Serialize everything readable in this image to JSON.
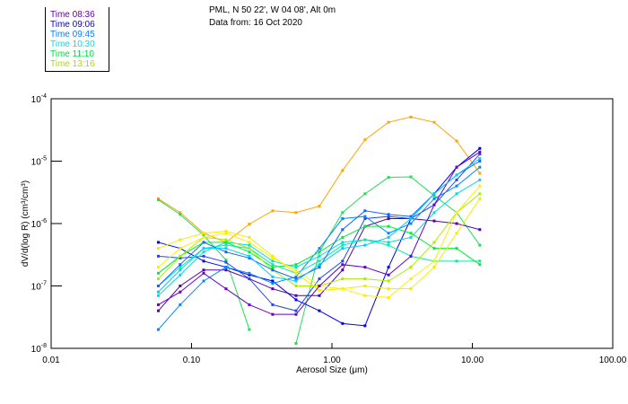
{
  "chart_data": {
    "type": "line",
    "title": [
      "PML, N 50 22', W 04 08', Alt 0m",
      "Data from: 16 Oct 2020"
    ],
    "xlabel": "Aerosol Size (μm)",
    "ylabel": "dV/d(log R) (cm³/cm³)",
    "xscale": "log",
    "yscale": "log",
    "xlim": [
      0.01,
      100
    ],
    "ylim": [
      1e-08,
      0.0001
    ],
    "xticks": [
      {
        "v": 0.01,
        "label": "0.01"
      },
      {
        "v": 0.1,
        "label": "0.10"
      },
      {
        "v": 1,
        "label": "1.00"
      },
      {
        "v": 10,
        "label": "10.00"
      },
      {
        "v": 100,
        "label": "100.00"
      }
    ],
    "yticks": [
      {
        "v": 0.0001,
        "exp": "-4"
      },
      {
        "v": 1e-05,
        "exp": "-5"
      },
      {
        "v": 1e-06,
        "exp": "-6"
      },
      {
        "v": 1e-07,
        "exp": "-7"
      },
      {
        "v": 1e-08,
        "exp": "-8"
      }
    ],
    "ytick_base": "10",
    "legend": {
      "placement": "top-left",
      "entries": [
        {
          "label": "Time 08:36",
          "color": "#6600aa"
        },
        {
          "label": "Time 09:06",
          "color": "#0000ee"
        },
        {
          "label": "Time 09:45",
          "color": "#0080ff"
        },
        {
          "label": "Time 10:30",
          "color": "#00e0e0"
        },
        {
          "label": "Time 11:10",
          "color": "#00dd44"
        },
        {
          "label": "Time 13:16",
          "color": "#aadd00"
        }
      ]
    },
    "x": [
      0.058,
      0.083,
      0.122,
      0.176,
      0.258,
      0.378,
      0.555,
      0.814,
      1.19,
      1.72,
      2.53,
      3.65,
      5.35,
      7.73,
      11.3
    ],
    "series": [
      {
        "color": "#ffa500",
        "values": [
          2.5e-06,
          1.5e-06,
          7e-07,
          5e-07,
          9.8e-07,
          1.6e-06,
          1.5e-06,
          1.9e-06,
          7.1e-06,
          2.2e-05,
          4.2e-05,
          5.1e-05,
          4.2e-05,
          2.1e-05,
          6.4e-06
        ]
      },
      {
        "color": "#22dd55",
        "values": [
          2.4e-06,
          1.4e-06,
          6.5e-07,
          2.6e-07,
          2e-08,
          null,
          null,
          null,
          null,
          null,
          null,
          null,
          null,
          null,
          null
        ]
      },
      {
        "color": "#22dd55",
        "values": [
          null,
          null,
          null,
          null,
          null,
          null,
          1.2e-08,
          3.5e-07,
          1.5e-06,
          3e-06,
          5.5e-06,
          5.6e-06,
          2.8e-06,
          1.5e-06,
          4.5e-07
        ]
      },
      {
        "color": "#5500aa",
        "values": [
          4e-08,
          1e-07,
          1.8e-07,
          1.8e-07,
          1.3e-07,
          9e-08,
          7e-08,
          7e-08,
          1.8e-07,
          9e-07,
          1.2e-06,
          1.2e-06,
          1.1e-06,
          1e-06,
          8e-07
        ]
      },
      {
        "color": "#0000ee",
        "values": [
          5e-07,
          4e-07,
          2.5e-07,
          2e-07,
          1.5e-07,
          1.2e-07,
          6e-08,
          4e-08,
          2.5e-08,
          2.3e-08,
          2e-07,
          1.2e-06,
          3e-06,
          8e-06,
          1.6e-05
        ]
      },
      {
        "color": "#2244ff",
        "values": [
          3e-07,
          2.8e-07,
          3e-07,
          2.4e-07,
          1.3e-07,
          5e-08,
          4e-08,
          1.3e-07,
          2.5e-07,
          1.2e-06,
          1.3e-06,
          1.2e-06,
          2e-06,
          5e-06,
          1.3e-05
        ]
      },
      {
        "color": "#0088ff",
        "values": [
          2e-08,
          5e-08,
          1.2e-07,
          2e-07,
          1.6e-07,
          1.1e-07,
          1.4e-07,
          4e-07,
          1.2e-06,
          1.3e-06,
          7e-07,
          1e-06,
          2.5e-06,
          4e-06,
          8e-06
        ]
      },
      {
        "color": "#00dddd",
        "values": [
          7e-08,
          1.5e-07,
          3.5e-07,
          5e-07,
          4.5e-07,
          2.5e-07,
          2e-07,
          3e-07,
          5e-07,
          5.5e-07,
          5e-07,
          6e-07,
          1.5e-06,
          3e-06,
          5e-06
        ]
      },
      {
        "color": "#00eeaa",
        "values": [
          1e-07,
          2e-07,
          4e-07,
          4.5e-07,
          4e-07,
          2.2e-07,
          1.6e-07,
          2.5e-07,
          4.5e-07,
          5.5e-07,
          4.5e-07,
          3e-07,
          2.5e-07,
          2.5e-07,
          2.5e-07
        ]
      },
      {
        "color": "#00ee33",
        "values": [
          1.6e-07,
          3e-07,
          5e-07,
          5e-07,
          3.5e-07,
          2e-07,
          2.2e-07,
          3.5e-07,
          6e-07,
          9e-07,
          9e-07,
          7e-07,
          4e-07,
          4e-07,
          2.2e-07
        ]
      },
      {
        "color": "#aaee00",
        "values": [
          1.3e-07,
          3e-07,
          6e-07,
          5.5e-07,
          4e-07,
          1.8e-07,
          1e-07,
          1e-07,
          1.3e-07,
          1.3e-07,
          1.2e-07,
          2e-07,
          5e-07,
          1.5e-06,
          3e-06
        ]
      },
      {
        "color": "#eeee00",
        "values": [
          4e-07,
          5.5e-07,
          7e-07,
          7.5e-07,
          6e-07,
          3e-07,
          1.6e-07,
          8.5e-08,
          9e-08,
          1e-07,
          9e-08,
          9e-08,
          2e-07,
          7e-07,
          2.5e-06
        ]
      },
      {
        "color": "#ffee00",
        "values": [
          2e-07,
          4e-07,
          6e-07,
          7e-07,
          5e-07,
          2.8e-07,
          1.8e-07,
          1e-07,
          9e-08,
          7e-08,
          6.5e-08,
          1.3e-07,
          2.5e-07,
          1.5e-06,
          4e-06
        ]
      },
      {
        "color": "#6600cc",
        "values": [
          5e-08,
          8e-08,
          1.6e-07,
          9e-08,
          5e-08,
          3.5e-08,
          3.5e-08,
          1e-07,
          2.2e-07,
          2e-07,
          1.5e-07,
          3e-07,
          2e-06,
          8e-06,
          1.4e-05
        ]
      },
      {
        "color": "#1166ff",
        "values": [
          1e-07,
          2.2e-07,
          5e-07,
          3.5e-07,
          2.8e-07,
          1.8e-07,
          1.3e-07,
          2e-07,
          8e-07,
          1.6e-06,
          1.4e-06,
          1.3e-06,
          3e-06,
          6e-06,
          1e-05
        ]
      },
      {
        "color": "#00ccff",
        "values": [
          8e-08,
          1.8e-07,
          4e-07,
          4e-07,
          3e-07,
          1.4e-07,
          1.2e-07,
          2.2e-07,
          4e-07,
          4.5e-07,
          6e-07,
          1.2e-06,
          3e-06,
          6e-06,
          1.1e-05
        ]
      }
    ]
  }
}
